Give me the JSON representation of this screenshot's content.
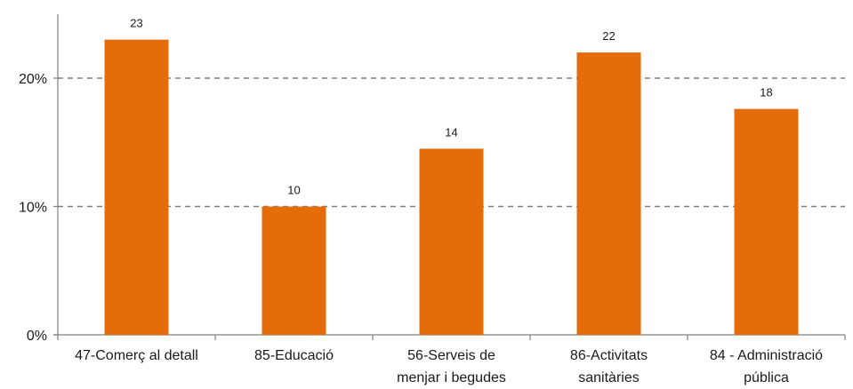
{
  "chart_data": {
    "type": "bar",
    "categories": [
      [
        "47-Comerç al detall"
      ],
      [
        "85-Educació"
      ],
      [
        "56-Serveis de",
        "menjar i begudes"
      ],
      [
        "86-Activitats",
        "sanitàries"
      ],
      [
        "84 - Administració",
        "pública"
      ]
    ],
    "values": [
      23,
      10,
      14.5,
      22,
      17.6
    ],
    "data_labels": [
      "23",
      "10",
      "14",
      "22",
      "18"
    ],
    "y_ticks": [
      {
        "value": 0,
        "label": "0%"
      },
      {
        "value": 10,
        "label": "10%"
      },
      {
        "value": 20,
        "label": "20%"
      }
    ],
    "ylim": [
      0,
      25
    ],
    "grid": true,
    "gridlines_at": [
      10,
      20
    ],
    "title": "",
    "xlabel": "",
    "ylabel": "",
    "colors": {
      "bar": "#E46C0A",
      "grid": "#808080",
      "axis": "#7f7f7f"
    }
  }
}
